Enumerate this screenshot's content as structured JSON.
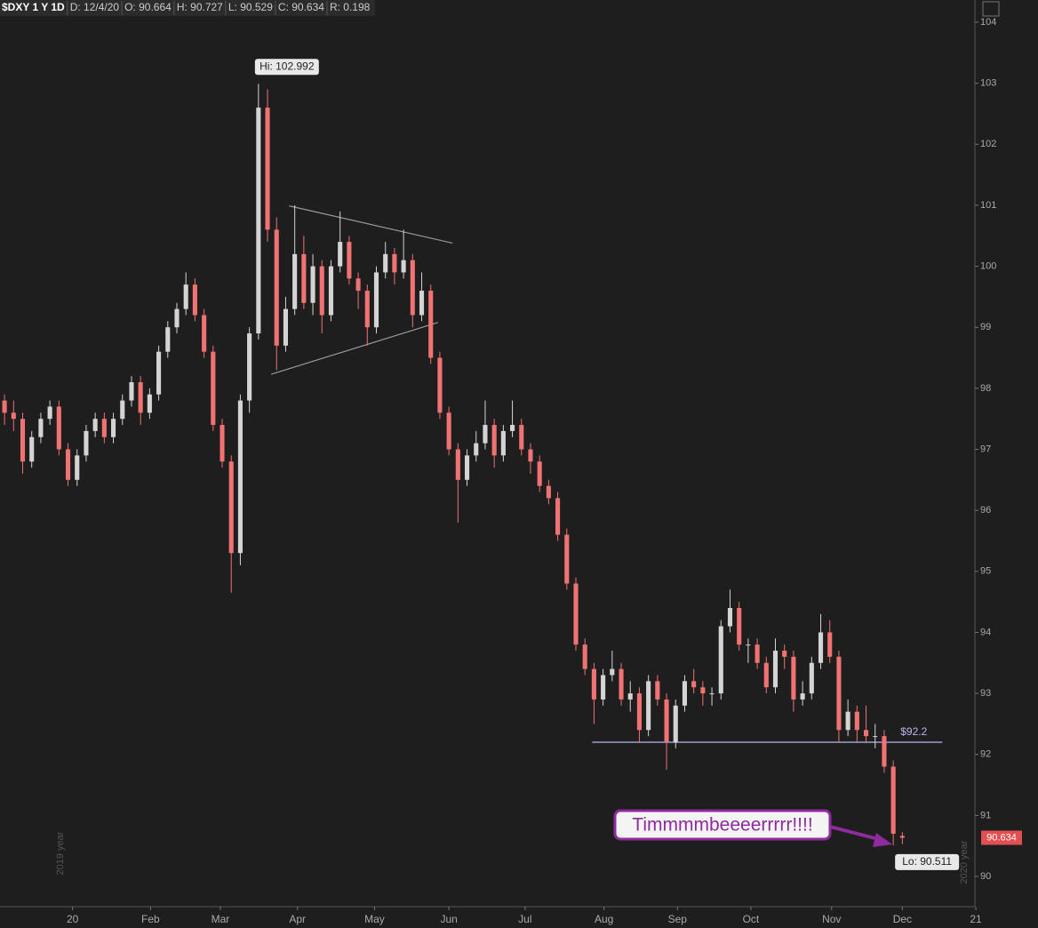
{
  "chart_data": {
    "type": "candlestick",
    "header": [
      "$DXY 1 Y 1D",
      "D: 12/4/20",
      "O: 90.664",
      "H: 90.727",
      "L: 90.529",
      "C: 90.634",
      "R: 0.198"
    ],
    "up_color": "#d4d4d4",
    "down_color": "#f07272",
    "ylim": [
      90,
      104
    ],
    "yticks": [
      90,
      91,
      92,
      93,
      94,
      95,
      96,
      97,
      98,
      99,
      100,
      101,
      102,
      103,
      104
    ],
    "xlim": [
      -0.5,
      107
    ],
    "xticks": [
      {
        "value": 7.5,
        "label": "20"
      },
      {
        "value": 16.1,
        "label": "Feb"
      },
      {
        "value": 23.8,
        "label": "Mar"
      },
      {
        "value": 32.3,
        "label": "Apr"
      },
      {
        "value": 40.8,
        "label": "May"
      },
      {
        "value": 49,
        "label": "Jun"
      },
      {
        "value": 57.4,
        "label": "Jul"
      },
      {
        "value": 66.1,
        "label": "Aug"
      },
      {
        "value": 74.2,
        "label": "Sep"
      },
      {
        "value": 82.3,
        "label": "Oct"
      },
      {
        "value": 91.2,
        "label": "Nov"
      },
      {
        "value": 99,
        "label": "Dec"
      },
      {
        "value": 107.1,
        "label": "21"
      }
    ],
    "grid": false,
    "candles": [
      [
        97.8,
        97.9,
        97.4,
        97.6
      ],
      [
        97.6,
        97.8,
        97.3,
        97.5
      ],
      [
        97.5,
        97.6,
        96.6,
        96.8
      ],
      [
        96.8,
        97.3,
        96.7,
        97.2
      ],
      [
        97.2,
        97.6,
        97.1,
        97.5
      ],
      [
        97.5,
        97.8,
        97.4,
        97.7
      ],
      [
        97.7,
        97.8,
        96.9,
        97.0
      ],
      [
        97.0,
        97.1,
        96.4,
        96.5
      ],
      [
        96.5,
        97.0,
        96.4,
        96.9
      ],
      [
        96.9,
        97.4,
        96.8,
        97.3
      ],
      [
        97.3,
        97.6,
        97.2,
        97.5
      ],
      [
        97.5,
        97.6,
        97.1,
        97.2
      ],
      [
        97.2,
        97.6,
        97.1,
        97.5
      ],
      [
        97.5,
        97.9,
        97.4,
        97.8
      ],
      [
        97.8,
        98.2,
        97.7,
        98.1
      ],
      [
        98.1,
        98.2,
        97.4,
        97.6
      ],
      [
        97.6,
        98.0,
        97.5,
        97.9
      ],
      [
        97.9,
        98.7,
        97.8,
        98.6
      ],
      [
        98.6,
        99.1,
        98.5,
        99.0
      ],
      [
        99.0,
        99.4,
        98.9,
        99.3
      ],
      [
        99.3,
        99.9,
        99.2,
        99.7
      ],
      [
        99.7,
        99.8,
        99.1,
        99.2
      ],
      [
        99.2,
        99.3,
        98.5,
        98.6
      ],
      [
        98.6,
        98.7,
        97.3,
        97.4
      ],
      [
        97.4,
        97.5,
        96.7,
        96.8
      ],
      [
        96.8,
        96.9,
        94.65,
        95.3
      ],
      [
        95.3,
        97.9,
        95.1,
        97.8
      ],
      [
        97.8,
        99.0,
        97.6,
        98.9
      ],
      [
        98.9,
        102.992,
        98.8,
        102.6
      ],
      [
        102.6,
        102.9,
        100.4,
        100.6
      ],
      [
        100.6,
        100.8,
        98.3,
        98.7
      ],
      [
        98.7,
        99.5,
        98.6,
        99.3
      ],
      [
        99.3,
        101.0,
        99.2,
        100.2
      ],
      [
        100.2,
        100.5,
        99.3,
        99.4
      ],
      [
        99.4,
        100.2,
        99.2,
        100.0
      ],
      [
        100.0,
        100.1,
        98.9,
        99.2
      ],
      [
        99.2,
        100.1,
        99.1,
        100.0
      ],
      [
        100.0,
        100.9,
        99.9,
        100.4
      ],
      [
        100.4,
        100.5,
        99.7,
        99.8
      ],
      [
        99.8,
        99.9,
        99.3,
        99.6
      ],
      [
        99.6,
        99.7,
        98.7,
        99.0
      ],
      [
        99.0,
        100.0,
        98.9,
        99.9
      ],
      [
        99.9,
        100.4,
        99.8,
        100.2
      ],
      [
        100.2,
        100.3,
        99.7,
        99.9
      ],
      [
        99.9,
        100.6,
        99.8,
        100.1
      ],
      [
        100.1,
        100.2,
        99.0,
        99.2
      ],
      [
        99.2,
        99.9,
        99.1,
        99.6
      ],
      [
        99.6,
        99.7,
        98.4,
        98.5
      ],
      [
        98.5,
        98.6,
        97.5,
        97.6
      ],
      [
        97.6,
        97.7,
        96.9,
        97.0
      ],
      [
        97.0,
        97.1,
        95.8,
        96.5
      ],
      [
        96.5,
        97.0,
        96.4,
        96.9
      ],
      [
        96.9,
        97.3,
        96.8,
        97.1
      ],
      [
        97.1,
        97.8,
        97.0,
        97.4
      ],
      [
        97.4,
        97.5,
        96.7,
        96.9
      ],
      [
        96.9,
        97.4,
        96.8,
        97.3
      ],
      [
        97.3,
        97.8,
        97.2,
        97.4
      ],
      [
        97.4,
        97.5,
        96.9,
        97.0
      ],
      [
        97.0,
        97.1,
        96.6,
        96.8
      ],
      [
        96.8,
        96.9,
        96.3,
        96.4
      ],
      [
        96.4,
        96.5,
        96.1,
        96.2
      ],
      [
        96.2,
        96.3,
        95.5,
        95.6
      ],
      [
        95.6,
        95.7,
        94.7,
        94.8
      ],
      [
        94.8,
        94.9,
        93.7,
        93.8
      ],
      [
        93.8,
        93.9,
        93.3,
        93.4
      ],
      [
        93.4,
        93.5,
        92.5,
        92.9
      ],
      [
        92.9,
        93.4,
        92.8,
        93.3
      ],
      [
        93.3,
        93.7,
        93.2,
        93.4
      ],
      [
        93.4,
        93.5,
        92.8,
        92.9
      ],
      [
        92.9,
        93.2,
        92.7,
        93.0
      ],
      [
        93.0,
        93.1,
        92.2,
        92.4
      ],
      [
        92.4,
        93.3,
        92.3,
        93.2
      ],
      [
        93.2,
        93.3,
        92.8,
        92.9
      ],
      [
        92.9,
        93.0,
        91.75,
        92.2
      ],
      [
        92.2,
        92.9,
        92.1,
        92.8
      ],
      [
        92.8,
        93.3,
        92.7,
        93.2
      ],
      [
        93.2,
        93.4,
        93.0,
        93.1
      ],
      [
        93.1,
        93.2,
        92.8,
        93.0
      ],
      [
        93.0,
        93.1,
        92.8,
        93.0
      ],
      [
        93.0,
        94.2,
        92.9,
        94.1
      ],
      [
        94.1,
        94.7,
        94.0,
        94.4
      ],
      [
        94.4,
        94.5,
        93.7,
        93.8
      ],
      [
        93.8,
        93.9,
        93.5,
        93.8
      ],
      [
        93.8,
        93.9,
        93.4,
        93.5
      ],
      [
        93.5,
        93.6,
        93.0,
        93.1
      ],
      [
        93.1,
        93.9,
        93.0,
        93.7
      ],
      [
        93.7,
        93.8,
        93.4,
        93.6
      ],
      [
        93.6,
        93.7,
        92.7,
        92.9
      ],
      [
        92.9,
        93.2,
        92.8,
        93.0
      ],
      [
        93.0,
        93.6,
        92.9,
        93.5
      ],
      [
        93.5,
        94.3,
        93.4,
        94.0
      ],
      [
        94.0,
        94.2,
        93.5,
        93.6
      ],
      [
        93.6,
        93.7,
        92.2,
        92.4
      ],
      [
        92.4,
        92.9,
        92.3,
        92.7
      ],
      [
        92.7,
        92.8,
        92.2,
        92.4
      ],
      [
        92.4,
        92.8,
        92.2,
        92.3
      ],
      [
        92.3,
        92.5,
        92.1,
        92.3
      ],
      [
        92.3,
        92.4,
        91.7,
        91.8
      ],
      [
        91.8,
        91.9,
        90.511,
        90.7
      ],
      [
        90.664,
        90.727,
        90.529,
        90.634
      ]
    ],
    "trendlines": [
      {
        "points": [
          [
            31.4,
            100.99
          ],
          [
            49.4,
            100.38
          ]
        ],
        "color": "#9a9a9a"
      },
      {
        "points": [
          [
            29.4,
            98.23
          ],
          [
            47.8,
            99.08
          ]
        ],
        "color": "#9a9a9a"
      }
    ],
    "level": {
      "value": 92.2,
      "label": "$92.2",
      "from": 64.8,
      "to": 103.4,
      "color": "#b8b8f0"
    },
    "hi_label": "Hi: 102.992",
    "lo_label": "Lo: 90.511",
    "last_price": 90.634,
    "year_labels": [
      "2019 year",
      "2020 year"
    ],
    "callout": "Timmmmbeeeerrrrr!!!!"
  }
}
